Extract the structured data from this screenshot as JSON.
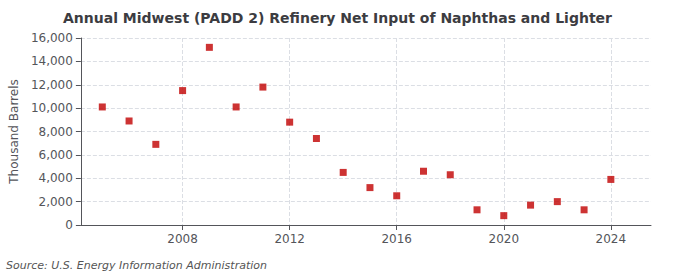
{
  "chart_data": {
    "type": "scatter",
    "title": "Annual Midwest (PADD 2) Refinery Net Input of Naphthas and Lighter",
    "ylabel": "Thousand Barrels",
    "annotations": [
      "Source: U.S. Energy Information Administration"
    ],
    "x": [
      2005,
      2006,
      2007,
      2008,
      2009,
      2010,
      2011,
      2012,
      2013,
      2014,
      2015,
      2016,
      2017,
      2018,
      2019,
      2020,
      2021,
      2022,
      2023,
      2024
    ],
    "values": [
      10100,
      8900,
      6900,
      11500,
      15200,
      10100,
      11800,
      8800,
      7400,
      4500,
      3200,
      2500,
      4600,
      4300,
      1300,
      800,
      1700,
      2000,
      1300,
      3900
    ],
    "color": "#c00000",
    "marker": "square",
    "xlim": [
      2004.2,
      2025.5
    ],
    "xticks": [
      2008,
      2012,
      2016,
      2020,
      2024
    ],
    "ylim": [
      0,
      16000
    ],
    "yticks": [
      0,
      {
        "value": 2000,
        "label": "2,000"
      },
      {
        "value": 4000,
        "label": "4,000"
      },
      {
        "value": 6000,
        "label": "6,000"
      },
      {
        "value": 8000,
        "label": "8,000"
      },
      {
        "value": 10000,
        "label": "10,000"
      },
      {
        "value": 12000,
        "label": "12,000"
      },
      {
        "value": 14000,
        "label": "14,000"
      },
      {
        "value": 16000,
        "label": "16,000"
      }
    ],
    "grid": true
  }
}
